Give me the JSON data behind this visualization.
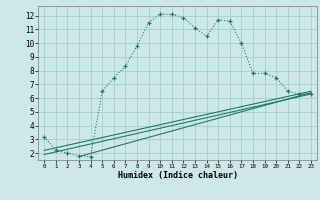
{
  "xlabel": "Humidex (Indice chaleur)",
  "bg_color": "#cde8e8",
  "grid_color": "#aacccc",
  "line_color": "#1a7a6a",
  "xlim": [
    -0.5,
    23.5
  ],
  "ylim": [
    1.5,
    12.7
  ],
  "xticks": [
    0,
    1,
    2,
    3,
    4,
    5,
    6,
    7,
    8,
    9,
    10,
    11,
    12,
    13,
    14,
    15,
    16,
    17,
    18,
    19,
    20,
    21,
    22,
    23
  ],
  "yticks": [
    2,
    3,
    4,
    5,
    6,
    7,
    8,
    9,
    10,
    11,
    12
  ],
  "curve1_x": [
    0,
    1,
    2,
    3,
    4,
    5,
    6,
    7,
    8,
    9,
    10,
    11,
    12,
    13,
    14,
    15,
    16,
    17,
    18,
    19,
    20,
    21,
    22,
    23
  ],
  "curve1_y": [
    3.2,
    2.2,
    2.0,
    1.8,
    1.75,
    6.5,
    7.5,
    8.3,
    9.8,
    11.5,
    12.1,
    12.1,
    11.85,
    11.1,
    10.5,
    11.7,
    11.6,
    10.0,
    7.8,
    7.8,
    7.5,
    6.5,
    6.3,
    6.3
  ],
  "line2_x": [
    0,
    23
  ],
  "line2_y": [
    2.2,
    6.5
  ],
  "line3_x": [
    0,
    23
  ],
  "line3_y": [
    1.9,
    6.3
  ],
  "line4_x": [
    3,
    23
  ],
  "line4_y": [
    1.75,
    6.4
  ]
}
